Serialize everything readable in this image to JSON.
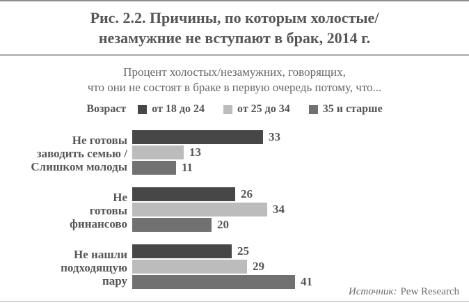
{
  "title": {
    "line1": "Рис. 2.2. Причины, по которым холостые/",
    "line2": "незамужние не вступают в брак, 2014 г."
  },
  "subtitle": {
    "line1": "Процент холостых/незамужних, говорящих,",
    "line2": "что они не состоят в браке в первую очередь потому, что..."
  },
  "legend": {
    "caption": "Возраст"
  },
  "source": {
    "label": "Источник:",
    "value": "Pew Research"
  },
  "colors": {
    "age_18_24": "#474747",
    "age_25_34": "#bcbcbc",
    "age_35_plus": "#717171",
    "text": "#565656",
    "rules": "#a9a9a9"
  },
  "chart_data": {
    "type": "bar",
    "orientation": "horizontal",
    "title": "Рис. 2.2. Причины, по которым холостые/незамужние не вступают в брак, 2014 г.",
    "subtitle": "Процент холостых/незамужних, говорящих, что они не состоят в браке в первую очередь потому, что...",
    "legend_caption": "Возраст",
    "legend_position": "top",
    "data_labels": true,
    "grid": false,
    "xlim": [
      0,
      41
    ],
    "categories": [
      "Не готовы заводить семью / Слишком молоды",
      "Не готовы финансово",
      "Не нашли подходящую пару"
    ],
    "category_lines": [
      [
        "Не готовы",
        "заводить семью /",
        "Слишком молоды"
      ],
      [
        "Не",
        "готовы",
        "финансово"
      ],
      [
        "Не нашли",
        "подходящую",
        "пару"
      ]
    ],
    "series": [
      {
        "name": "от 18 до 24",
        "color": "#474747",
        "values": [
          33,
          26,
          25
        ]
      },
      {
        "name": "от 25 до 34",
        "color": "#bcbcbc",
        "values": [
          13,
          34,
          29
        ]
      },
      {
        "name": "35 и старше",
        "color": "#717171",
        "values": [
          11,
          20,
          41
        ]
      }
    ],
    "source": "Источник: Pew Research"
  }
}
